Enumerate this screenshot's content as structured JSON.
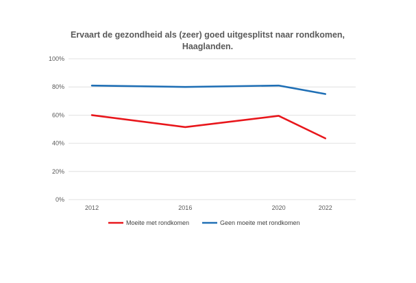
{
  "chart_data": {
    "type": "line",
    "title": "Ervaart de gezondheid als (zeer) goed uitgesplitst naar rondkomen, Haaglanden.",
    "title_lines": [
      "Ervaart de gezondheid als (zeer) goed uitgesplitst naar rondkomen,",
      "Haaglanden."
    ],
    "xlabel": "",
    "ylabel": "",
    "x": [
      2012,
      2016,
      2020,
      2022
    ],
    "x_tick_labels": [
      "2012",
      "2016",
      "2020",
      "2022"
    ],
    "ylim": [
      0,
      100
    ],
    "y_ticks": [
      0,
      20,
      40,
      60,
      80,
      100
    ],
    "y_tick_labels": [
      "0%",
      "20%",
      "40%",
      "60%",
      "80%",
      "100%"
    ],
    "grid": true,
    "legend_position": "bottom",
    "series": [
      {
        "name": "Moeite met rondkomen",
        "color": "#e8161b",
        "values": [
          60,
          51.5,
          59.5,
          43.5
        ]
      },
      {
        "name": "Geen moeite met rondkomen",
        "color": "#1f6fb5",
        "values": [
          81,
          80,
          81,
          75
        ]
      }
    ]
  }
}
